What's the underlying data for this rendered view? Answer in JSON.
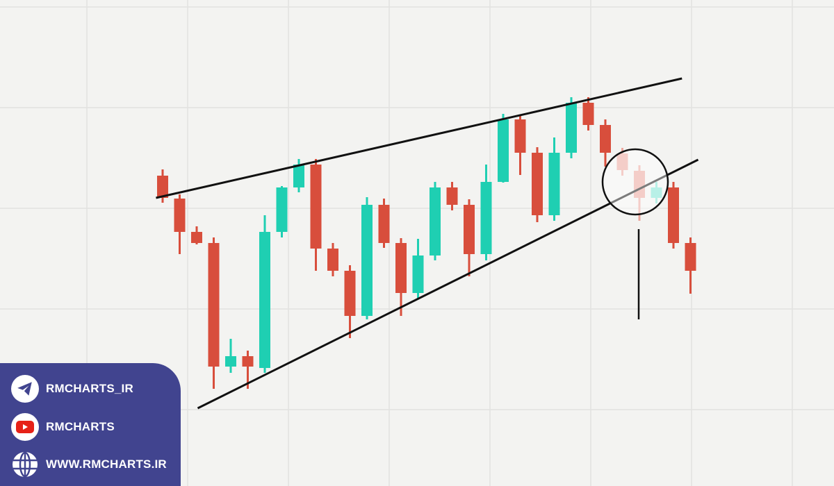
{
  "chart_data": {
    "type": "candlestick",
    "title": "",
    "xlabel": "",
    "ylabel": "",
    "grid": true,
    "colors": {
      "up": "#1fcfb2",
      "down": "#d84e3c",
      "up_faded": "#7fe3d3",
      "down_faded": "#eba59c",
      "line": "#111111",
      "background": "#f3f3f1"
    },
    "candles": [
      {
        "open": 34.7,
        "high": 35.6,
        "low": 30.8,
        "close": 31.5
      },
      {
        "open": 31.4,
        "high": 32.0,
        "low": 23.4,
        "close": 26.6
      },
      {
        "open": 26.6,
        "high": 27.4,
        "low": 24.8,
        "close": 25.0
      },
      {
        "open": 25.0,
        "high": 25.8,
        "low": 4.0,
        "close": 7.2
      },
      {
        "open": 7.2,
        "high": 11.2,
        "low": 6.3,
        "close": 8.7
      },
      {
        "open": 8.7,
        "high": 9.5,
        "low": 4.0,
        "close": 7.2
      },
      {
        "open": 7.0,
        "high": 29.0,
        "low": 6.3,
        "close": 26.6
      },
      {
        "open": 26.6,
        "high": 33.2,
        "low": 25.8,
        "close": 33.0
      },
      {
        "open": 33.0,
        "high": 37.1,
        "low": 32.3,
        "close": 36.3
      },
      {
        "open": 36.3,
        "high": 37.1,
        "low": 21.0,
        "close": 24.2
      },
      {
        "open": 24.2,
        "high": 25.0,
        "low": 20.2,
        "close": 21.0
      },
      {
        "open": 21.0,
        "high": 21.8,
        "low": 11.3,
        "close": 14.5
      },
      {
        "open": 14.5,
        "high": 31.6,
        "low": 14.0,
        "close": 30.5
      },
      {
        "open": 30.5,
        "high": 31.4,
        "low": 24.3,
        "close": 25.0
      },
      {
        "open": 25.0,
        "high": 25.7,
        "low": 14.5,
        "close": 17.8
      },
      {
        "open": 17.8,
        "high": 25.6,
        "low": 17.0,
        "close": 23.2
      },
      {
        "open": 23.2,
        "high": 33.8,
        "low": 22.5,
        "close": 33.0
      },
      {
        "open": 33.0,
        "high": 33.8,
        "low": 29.7,
        "close": 30.5
      },
      {
        "open": 30.5,
        "high": 31.3,
        "low": 20.2,
        "close": 23.4
      },
      {
        "open": 23.4,
        "high": 36.3,
        "low": 22.5,
        "close": 33.8
      },
      {
        "open": 33.8,
        "high": 43.6,
        "low": 33.7,
        "close": 42.8
      },
      {
        "open": 42.8,
        "high": 43.5,
        "low": 34.8,
        "close": 38.0
      },
      {
        "open": 38.0,
        "high": 38.8,
        "low": 28.0,
        "close": 29.0
      },
      {
        "open": 29.0,
        "high": 40.2,
        "low": 28.2,
        "close": 38.0
      },
      {
        "open": 38.0,
        "high": 46.0,
        "low": 37.2,
        "close": 45.2
      },
      {
        "open": 45.2,
        "high": 46.0,
        "low": 41.2,
        "close": 42.0
      },
      {
        "open": 42.0,
        "high": 42.8,
        "low": 36.0,
        "close": 38.0
      },
      {
        "open": 37.9,
        "high": 38.7,
        "low": 34.7,
        "close": 35.5,
        "faded": true
      },
      {
        "open": 35.4,
        "high": 36.2,
        "low": 28.2,
        "close": 31.5,
        "faded": true
      },
      {
        "open": 31.5,
        "high": 33.8,
        "low": 30.7,
        "close": 33.0,
        "faded": true
      },
      {
        "open": 33.0,
        "high": 33.8,
        "low": 24.2,
        "close": 25.0
      },
      {
        "open": 25.0,
        "high": 25.8,
        "low": 17.7,
        "close": 21.0
      }
    ],
    "trendlines": [
      {
        "from": [
          -0.39,
          31.5
        ],
        "to": [
          30.5,
          48.7
        ]
      },
      {
        "from": [
          2.06,
          1.2
        ],
        "to": [
          31.45,
          37.0
        ]
      }
    ],
    "highlight_circle": {
      "candle": 29,
      "price": 33.8
    },
    "pointer_line": {
      "candle": 29,
      "from_price": 29.0,
      "to_price": 15.0
    }
  },
  "social": [
    {
      "icon": "telegram-icon",
      "label": "RMCHARTS_IR"
    },
    {
      "icon": "youtube-icon",
      "label": "RMCHARTS"
    },
    {
      "icon": "globe-icon",
      "label": "WWW.RMCHARTS.IR"
    }
  ]
}
